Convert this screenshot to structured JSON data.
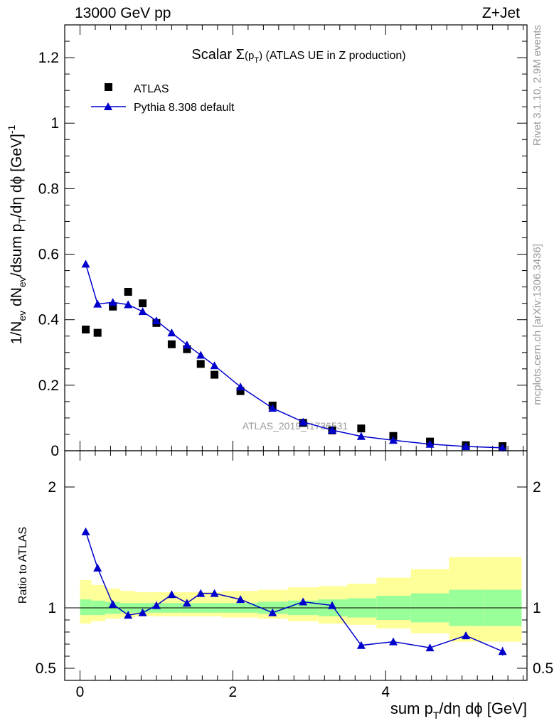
{
  "header": {
    "left": "13000 GeV pp",
    "right": "Z+Jet"
  },
  "side_labels": {
    "top": "Rivet 3.1.10,  2.9M events",
    "bottom": "mcplots.cern.ch [arXiv:1306.3436]"
  },
  "watermark": "ATLAS_2019_I1736531",
  "colors": {
    "data": "#000000",
    "mc": "#0000cc",
    "band_inner": "#99ff99",
    "band_outer": "#ffff99"
  },
  "chart_data": [
    {
      "type": "scatter",
      "title_prefix": "Scalar ",
      "title_sigma": "Σ",
      "title_p": "(p",
      "title_sub": "T",
      "title_close": ")",
      "title_rest": " (ATLAS UE in Z production)",
      "ylabel": {
        "a": "1/N",
        "a_sub": "ev",
        "b": " dN",
        "b_sub": "ev",
        "c": "/dsum p",
        "c_sub": "T",
        "d": "/dη dϕ  [GeV]",
        "d_sup": "-1"
      },
      "xlim": [
        -0.2,
        5.85
      ],
      "ylim": [
        0,
        1.3
      ],
      "yticks": [
        0,
        0.2,
        0.4,
        0.6,
        0.8,
        1,
        1.2
      ],
      "ytick_labels": [
        "0",
        "0.2",
        "0.4",
        "0.6",
        "0.8",
        "1",
        "1.2"
      ],
      "legend": {
        "placement": "top-left",
        "entries": [
          "ATLAS",
          "Pythia 8.308 default"
        ]
      },
      "series": [
        {
          "name": "ATLAS",
          "marker": "square",
          "x": [
            0.075,
            0.23,
            0.43,
            0.63,
            0.82,
            1.0,
            1.2,
            1.4,
            1.58,
            1.76,
            2.1,
            2.52,
            2.92,
            3.3,
            3.68,
            4.1,
            4.58,
            5.05,
            5.53
          ],
          "y": [
            0.37,
            0.36,
            0.44,
            0.485,
            0.45,
            0.39,
            0.325,
            0.31,
            0.265,
            0.232,
            0.182,
            0.138,
            0.085,
            0.062,
            0.068,
            0.045,
            0.028,
            0.017,
            0.014
          ]
        },
        {
          "name": "Pythia 8.308 default",
          "marker": "triangle",
          "x": [
            0.075,
            0.23,
            0.43,
            0.63,
            0.82,
            1.0,
            1.2,
            1.4,
            1.58,
            1.76,
            2.1,
            2.52,
            2.92,
            3.3,
            3.68,
            4.1,
            4.58,
            5.05,
            5.53
          ],
          "y": [
            0.57,
            0.448,
            0.453,
            0.446,
            0.425,
            0.397,
            0.36,
            0.323,
            0.292,
            0.26,
            0.195,
            0.13,
            0.088,
            0.063,
            0.044,
            0.032,
            0.02,
            0.013,
            0.009
          ]
        }
      ]
    },
    {
      "type": "scatter",
      "xlabel": {
        "a": "sum p",
        "a_sub": "T",
        "b": "/dη dϕ [GeV]"
      },
      "ylabel": "Ratio to ATLAS",
      "xlim": [
        -0.2,
        5.85
      ],
      "ylim": [
        0.4,
        2.3
      ],
      "xticks": [
        0,
        2,
        4
      ],
      "xtick_labels": [
        "0",
        "2",
        "4"
      ],
      "yticks": [
        0.5,
        1,
        2
      ],
      "ytick_labels": [
        "0.5",
        "1",
        "2"
      ],
      "reference_line": 1,
      "bands": {
        "edges": [
          0,
          0.15,
          0.33,
          0.53,
          0.72,
          0.91,
          1.1,
          1.3,
          1.49,
          1.67,
          1.86,
          2.33,
          2.72,
          3.12,
          3.5,
          3.88,
          4.33,
          4.83,
          5.28,
          5.78
        ],
        "inner_lo": [
          0.94,
          0.94,
          0.95,
          0.96,
          0.96,
          0.96,
          0.96,
          0.96,
          0.96,
          0.96,
          0.96,
          0.95,
          0.94,
          0.93,
          0.92,
          0.9,
          0.88,
          0.85,
          0.85
        ],
        "inner_hi": [
          1.07,
          1.06,
          1.05,
          1.04,
          1.04,
          1.04,
          1.04,
          1.04,
          1.04,
          1.04,
          1.04,
          1.05,
          1.06,
          1.07,
          1.08,
          1.1,
          1.12,
          1.15,
          1.15
        ],
        "outer_lo": [
          0.87,
          0.89,
          0.91,
          0.92,
          0.93,
          0.93,
          0.93,
          0.93,
          0.93,
          0.93,
          0.92,
          0.91,
          0.89,
          0.87,
          0.86,
          0.83,
          0.79,
          0.72,
          0.72
        ],
        "outer_hi": [
          1.23,
          1.19,
          1.16,
          1.14,
          1.13,
          1.13,
          1.13,
          1.13,
          1.13,
          1.13,
          1.14,
          1.15,
          1.17,
          1.18,
          1.2,
          1.25,
          1.32,
          1.42,
          1.42
        ]
      },
      "series": [
        {
          "name": "Pythia 8.308 default",
          "marker": "triangle",
          "x": [
            0.075,
            0.23,
            0.43,
            0.63,
            0.82,
            1.0,
            1.2,
            1.4,
            1.58,
            1.76,
            2.1,
            2.52,
            2.92,
            3.3,
            3.68,
            4.1,
            4.58,
            5.05,
            5.53
          ],
          "y": [
            1.63,
            1.33,
            1.03,
            0.94,
            0.96,
            1.02,
            1.11,
            1.04,
            1.12,
            1.12,
            1.07,
            0.96,
            1.05,
            1.02,
            0.69,
            0.72,
            0.67,
            0.77,
            0.64
          ],
          "err": [
            0.01,
            0.01,
            0.01,
            0.01,
            0.01,
            0.01,
            0.01,
            0.01,
            0.01,
            0.01,
            0.01,
            0.01,
            0.01,
            0.01,
            0.015,
            0.02,
            0.025,
            0.03,
            0.035
          ]
        }
      ]
    }
  ]
}
